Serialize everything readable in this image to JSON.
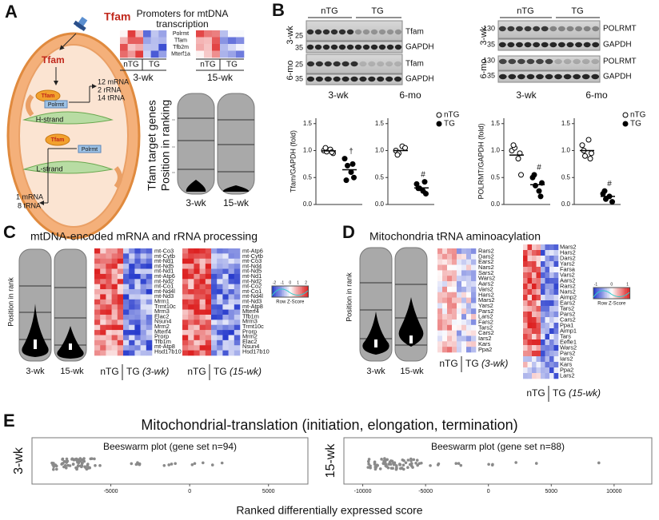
{
  "panel_labels": [
    "A",
    "B",
    "C",
    "D",
    "E"
  ],
  "panel_a": {
    "schematic": {
      "tfam_labels": [
        "Tfam",
        "Tfam",
        "Tfam",
        "Tfam"
      ],
      "polrmt_labels": [
        "Polrmt",
        "Polrmt"
      ],
      "strands": [
        "H-strand",
        "L-strand"
      ],
      "h_strand_products": [
        "12 mRNA",
        "2 rRNA",
        "14 tRNA"
      ],
      "l_strand_products": [
        "1 mRNA",
        "8 tRNA"
      ]
    },
    "promoters": {
      "title_lines": [
        "Promoters for mtDNA",
        "transcription"
      ],
      "genes": [
        "Polrmt",
        "Tfam",
        "Tfb2m",
        "Mterf1a"
      ],
      "groups": [
        "nTG",
        "TG"
      ],
      "timepoints": [
        "3-wk",
        "15-wk"
      ]
    },
    "violin": {
      "y_label_lines": [
        "Tfam target genes",
        "Position in ranking"
      ],
      "x_labels": [
        "3-wk",
        "15-wk"
      ]
    }
  },
  "panel_b": {
    "groups": [
      "nTG",
      "TG"
    ],
    "timepoints": [
      "3-wk",
      "6-mo"
    ],
    "tfam_blot": {
      "mw": [
        "25",
        "35"
      ],
      "bands": [
        "Tfam",
        "GAPDH"
      ]
    },
    "polrmt_blot": {
      "mw": [
        "130",
        "35"
      ],
      "bands": [
        "POLRMT",
        "GAPDH"
      ]
    }
  },
  "chart_data": [
    {
      "type": "dot",
      "title": "3-wk",
      "y_label": "Tfam/GAPDH (fold)",
      "ylim": [
        0,
        1.6
      ],
      "yticks": [
        {
          "value": 0,
          "label": "0.0"
        },
        0.5,
        {
          "value": 1,
          "label": "1.0"
        },
        1.5
      ],
      "series": [
        {
          "fill": "#ffffff",
          "values": [
            1.0,
            0.98,
            1.02,
            0.95,
            1.05,
            0.97
          ]
        },
        {
          "fill": "#000000",
          "values": [
            0.85,
            0.72,
            0.6,
            0.5,
            0.45,
            0.75
          ],
          "annotation": "†"
        }
      ]
    },
    {
      "type": "dot",
      "title": "6-mo",
      "ylim": [
        0,
        1.6
      ],
      "yticks": [
        {
          "value": 0,
          "label": "0.0"
        },
        0.5,
        {
          "value": 1,
          "label": "1.0"
        },
        1.5
      ],
      "series": [
        {
          "name": "nTG",
          "fill": "#ffffff",
          "values": [
            1.0,
            0.95,
            1.08,
            1.05,
            0.92
          ]
        },
        {
          "name": "TG",
          "fill": "#000000",
          "values": [
            0.38,
            0.3,
            0.25,
            0.2,
            0.3,
            0.42
          ],
          "annotation": "#"
        }
      ]
    },
    {
      "type": "dot",
      "title": "3-wk",
      "y_label": "POLRMT/GAPDH (fold)",
      "ylim": [
        0,
        1.6
      ],
      "yticks": [
        {
          "value": 0,
          "label": "0.0"
        },
        0.5,
        {
          "value": 1,
          "label": "1.0"
        },
        1.5
      ],
      "series": [
        {
          "fill": "#ffffff",
          "values": [
            1.0,
            1.05,
            0.85,
            0.55,
            1.1,
            0.95
          ]
        },
        {
          "fill": "#000000",
          "values": [
            0.5,
            0.35,
            0.25,
            0.4,
            0.55,
            0.15
          ],
          "annotation": "#"
        }
      ]
    },
    {
      "type": "dot",
      "title": "6-mo",
      "ylim": [
        0,
        1.6
      ],
      "yticks": [
        {
          "value": 0,
          "label": "0.0"
        },
        0.5,
        {
          "value": 1,
          "label": "1.0"
        },
        1.5
      ],
      "series": [
        {
          "name": "nTG",
          "fill": "#ffffff",
          "values": [
            1.1,
            0.9,
            1.2,
            0.95,
            1.0,
            0.85
          ]
        },
        {
          "name": "TG",
          "fill": "#000000",
          "values": [
            0.2,
            0.1,
            0.15,
            0.05,
            0.25
          ],
          "annotation": "#"
        }
      ]
    }
  ],
  "panel_c": {
    "title": "mtDNA-encoded mRNA and rRNA processing",
    "violin": {
      "y_label": "Position in rank",
      "x_labels": [
        "3-wk",
        "15-wk"
      ]
    },
    "heatmap_3wk": {
      "genes": [
        "mt-Co3",
        "mt-Cytb",
        "mt-Nd1",
        "mt-Nd5",
        "mt-Nd1",
        "mt-Atp6",
        "mt-Nd2",
        "mt-Co1",
        "mt-Nd4l",
        "mt-Nd3",
        "Mrm1",
        "Trmt10c",
        "Mrm3",
        "Elac2",
        "Nsun4",
        "Mrm2",
        "Mterf4",
        "Prorp",
        "Tfb1m",
        "mt-Atp8",
        "Hsd17b10"
      ],
      "groups": [
        "nTG",
        "TG"
      ],
      "timepoint": "(3-wk)"
    },
    "heatmap_15wk": {
      "genes": [
        "mt-Atp6",
        "mt-Cytb",
        "mt-Co3",
        "mt-Nd4",
        "mt-Nd5",
        "mt-Nd1",
        "mt-Nd2",
        "mt-Co2",
        "mt-Co1",
        "mt-Nd4l",
        "mt-Nd3",
        "mt-Atp8",
        "Mterf4",
        "Tfb1m",
        "Mrm3",
        "Trmt10c",
        "Prorp",
        "Mrm2",
        "Elac2",
        "Nsun4",
        "Hsd17b10"
      ],
      "groups": [
        "nTG",
        "TG"
      ],
      "timepoint": "(15-wk)"
    },
    "color_key": {
      "label": "Row Z-Score",
      "ticks": [
        -2,
        -1,
        0,
        1,
        2
      ]
    }
  },
  "panel_d": {
    "title": "Mitochondria tRNA aminoacylation",
    "violin": {
      "y_label": "Position in rank",
      "x_labels": [
        "3-wk",
        "15-wk"
      ]
    },
    "heatmap_3wk": {
      "genes": [
        "Rars2",
        "Dars2",
        "Ears2",
        "Nars2",
        "Sars2",
        "Wars2",
        "Aars2",
        "Vars2",
        "Hars2",
        "Mars2",
        "Yars2",
        "Pars2",
        "Lars2",
        "Fars2",
        "Tars2",
        "Cars2",
        "Iars2",
        "Kars",
        "Ppa2"
      ],
      "groups": [
        "nTG",
        "TG"
      ],
      "timepoint": "(3-wk)"
    },
    "heatmap_15wk": {
      "genes": [
        "Mars2",
        "Hars2",
        "Dars2",
        "Yars2",
        "Farsa",
        "Vars2",
        "Aars2",
        "Rars2",
        "Nars2",
        "Aimp2",
        "Ears2",
        "Tars2",
        "Pars2",
        "Cars2",
        "Ppa1",
        "Aimp1",
        "Tars",
        "Eefle1",
        "Wars2",
        "Pars2",
        "Iars2",
        "Kars",
        "Ppa2",
        "Lars2"
      ],
      "groups": [
        "nTG",
        "TG"
      ],
      "timepoint": "(15-wk)"
    },
    "color_key": {
      "label": "Row Z-Score",
      "ticks": [
        -1,
        0,
        1
      ]
    }
  },
  "panel_e": {
    "title": "Mitochondrial-translation (initiation, elongation, termination)",
    "x_label": "Ranked differentially expressed score",
    "plots": [
      {
        "timepoint": "3-wk",
        "caption": "Beeswarm plot (gene set n=94)",
        "xlim": [
          -10000,
          7500
        ],
        "xticks": [
          -5000,
          0,
          5000
        ]
      },
      {
        "timepoint": "15-wk",
        "caption": "Beeswarm plot (gene set n=88)",
        "xlim": [
          -11500,
          13000
        ],
        "xticks": [
          -10000,
          -5000,
          0,
          5000,
          10000
        ]
      }
    ]
  }
}
